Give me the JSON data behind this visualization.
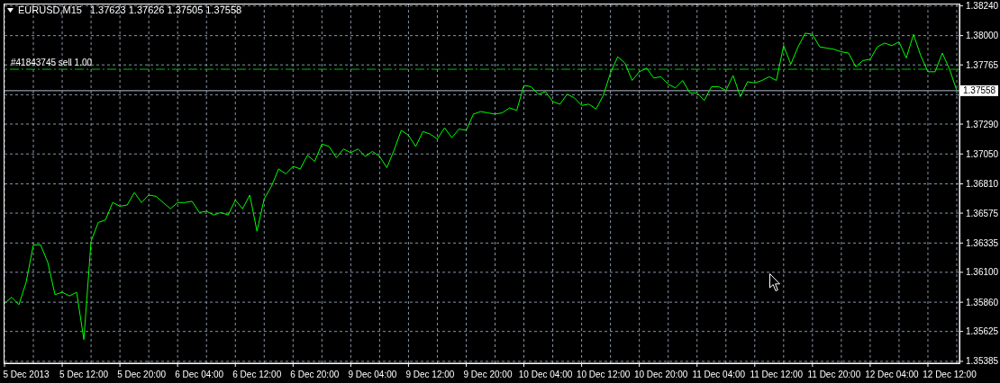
{
  "chart_data": {
    "type": "line",
    "title": "EURUSD,M15",
    "subtitle": "1.37623 1.37626 1.37505 1.37558",
    "categories": [
      null,
      null,
      null,
      "5 Dec 2013",
      null,
      null,
      null,
      null,
      null,
      null,
      null,
      "5 Dec 12:00",
      null,
      null,
      null,
      null,
      null,
      null,
      null,
      "5 Dec 20:00",
      null,
      null,
      null,
      null,
      null,
      null,
      null,
      "6 Dec 04:00",
      null,
      null,
      null,
      null,
      null,
      null,
      null,
      "6 Dec 12:00",
      null,
      null,
      null,
      null,
      null,
      null,
      null,
      "6 Dec 20:00",
      null,
      null,
      null,
      null,
      null,
      null,
      null,
      "9 Dec 04:00",
      null,
      null,
      null,
      null,
      null,
      null,
      null,
      "9 Dec 12:00",
      null,
      null,
      null,
      null,
      null,
      null,
      null,
      "9 Dec 20:00",
      null,
      null,
      null,
      null,
      null,
      null,
      null,
      "10 Dec 04:00",
      null,
      null,
      null,
      null,
      null,
      null,
      null,
      "10 Dec 12:00",
      null,
      null,
      null,
      null,
      null,
      null,
      null,
      "10 Dec 20:00",
      null,
      null,
      null,
      null,
      null,
      null,
      null,
      "11 Dec 04:00",
      null,
      null,
      null,
      null,
      null,
      null,
      null,
      "11 Dec 12:00",
      null,
      null,
      null,
      null,
      null,
      null,
      null,
      "11 Dec 20:00",
      null,
      null,
      null,
      null,
      null,
      null,
      null,
      "12 Dec 04:00",
      null,
      null,
      null,
      null,
      null,
      null,
      null,
      "12 Dec 12:00",
      null
    ],
    "values": [
      1.3585,
      1.359,
      1.3584,
      1.3602,
      1.3632,
      1.3632,
      1.3618,
      1.3592,
      1.3594,
      1.3591,
      1.3594,
      1.3556,
      1.3635,
      1.365,
      1.3652,
      1.3666,
      1.3663,
      1.3664,
      1.3674,
      1.3666,
      1.3672,
      1.3671,
      1.3666,
      1.3661,
      1.3666,
      1.3666,
      1.3667,
      1.3658,
      1.3659,
      1.3656,
      1.3658,
      1.3656,
      1.3668,
      1.3661,
      1.3672,
      1.3643,
      1.3669,
      1.3679,
      1.3693,
      1.3689,
      1.3695,
      1.3693,
      1.3704,
      1.3699,
      1.3713,
      1.3711,
      1.3702,
      1.3709,
      1.3706,
      1.3709,
      1.3703,
      1.3707,
      1.3703,
      1.3694,
      1.3708,
      1.3724,
      1.372,
      1.3711,
      1.3723,
      1.3721,
      1.3717,
      1.3726,
      1.3718,
      1.3725,
      1.3724,
      1.3737,
      1.3739,
      1.3738,
      1.3737,
      1.3738,
      1.3742,
      1.374,
      1.376,
      1.3759,
      1.3753,
      1.3755,
      1.3747,
      1.3745,
      1.3753,
      1.375,
      1.3744,
      1.3745,
      1.3741,
      1.3752,
      1.377,
      1.3783,
      1.3778,
      1.3764,
      1.3771,
      1.3774,
      1.3766,
      1.3767,
      1.3761,
      1.3758,
      1.3764,
      1.3754,
      1.3754,
      1.3748,
      1.3759,
      1.3759,
      1.3756,
      1.3768,
      1.3751,
      1.3763,
      1.3762,
      1.3764,
      1.3767,
      1.3764,
      1.3792,
      1.3777,
      1.3791,
      1.3802,
      1.3801,
      1.3791,
      1.379,
      1.3789,
      1.3787,
      1.3786,
      1.3775,
      1.378,
      1.3781,
      1.3791,
      1.3794,
      1.3792,
      1.3795,
      1.3782,
      1.3801,
      1.3784,
      1.3771,
      1.3771,
      1.3786,
      1.3773,
      1.3756
    ],
    "color": "#00ff00",
    "line_style": "solid",
    "marker": "none",
    "ylim": [
      1.3537,
      1.3825
    ],
    "yticks": [
      {
        "value": 1.35385,
        "label": "1.35385"
      },
      {
        "value": 1.35625,
        "label": "1.35625"
      },
      {
        "value": 1.3586,
        "label": "1.35860"
      },
      {
        "value": 1.361,
        "label": "1.36100"
      },
      {
        "value": 1.36335,
        "label": "1.36335"
      },
      {
        "value": 1.36575,
        "label": "1.36575"
      },
      {
        "value": 1.3681,
        "label": "1.36810"
      },
      {
        "value": 1.3705,
        "label": "1.37050"
      },
      {
        "value": 1.3729,
        "label": "1.37290"
      },
      {
        "value": 1.37525,
        "label": null
      },
      {
        "value": 1.37765,
        "label": "1.37765"
      },
      {
        "value": 1.38,
        "label": "1.38000"
      },
      {
        "value": 1.3824,
        "label": "1.38240"
      }
    ],
    "grid": true,
    "ref_lines": [
      {
        "axis": "y",
        "value": 1.3773,
        "label": "#41843745 sell 1.00",
        "color": "#00c000",
        "line_style": "dashed"
      },
      {
        "axis": "y",
        "value": 1.37558,
        "label": "1.37558",
        "color": "#b4bccb",
        "line_style": "solid"
      }
    ]
  }
}
